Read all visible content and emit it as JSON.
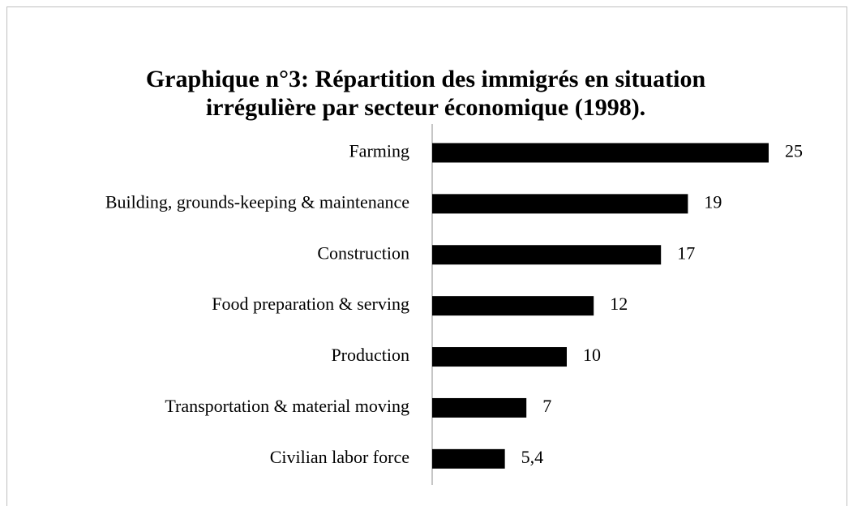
{
  "chart_data": {
    "type": "hbar",
    "title": [
      "Graphique n°3: Répartition des immigrés en situation",
      "irrégulière par secteur économique (1998)."
    ],
    "categories": [
      "Farming",
      "Building, grounds-keeping & maintenance",
      "Construction",
      "Food preparation & serving",
      "Production",
      "Transportation & material moving",
      "Civilian labor force"
    ],
    "values": [
      25,
      19,
      17,
      12,
      10,
      7,
      5.4
    ],
    "value_labels": [
      "25",
      "19",
      "17",
      "12",
      "10",
      "7",
      "5,4"
    ],
    "color": "#000000"
  }
}
